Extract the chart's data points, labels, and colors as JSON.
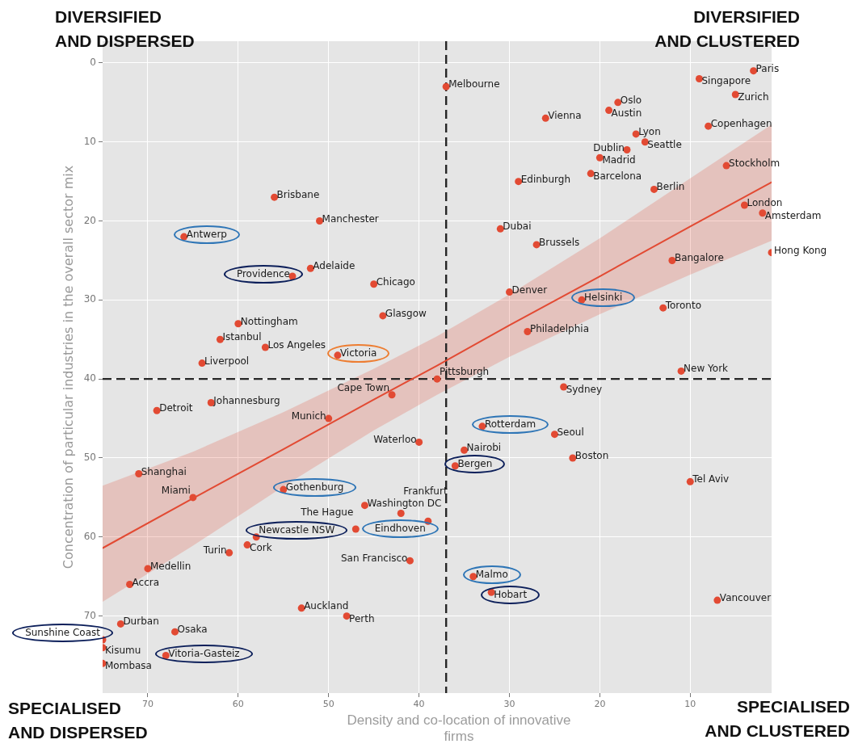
{
  "chart_data": {
    "type": "scatter",
    "xlabel": "Density and co-location of innovative firms",
    "ylabel": "Concentration of particular industries in the overall sector mix",
    "xlim": [
      75,
      1
    ],
    "xticks": [
      70,
      60,
      50,
      40,
      30,
      20,
      10
    ],
    "ylim": [
      79.75,
      -2.75
    ],
    "yticks": [
      0,
      10,
      20,
      30,
      40,
      50,
      60,
      70
    ],
    "grid": true,
    "marker": "circle",
    "series": [
      {
        "color": "#e24a33",
        "x": [
          3,
          9,
          37,
          5,
          18,
          19,
          26,
          8,
          16,
          15,
          17,
          20,
          6,
          21,
          29,
          14,
          56,
          4,
          2,
          51,
          31,
          66,
          27,
          1,
          12,
          52,
          54,
          45,
          30,
          22,
          13,
          44,
          60,
          28,
          62,
          57,
          49,
          64,
          11,
          38,
          24,
          43,
          63,
          69,
          50,
          33,
          25,
          40,
          35,
          23,
          36,
          71,
          10,
          55,
          65,
          46,
          42,
          39,
          47,
          58,
          59,
          61,
          41,
          70,
          34,
          72,
          32,
          7,
          53,
          48,
          73,
          67,
          75,
          75,
          68,
          75
        ],
        "values": [
          1,
          2,
          3,
          4,
          5,
          6,
          7,
          8,
          9,
          10,
          11,
          12,
          13,
          14,
          15,
          16,
          17,
          18,
          19,
          20,
          21,
          22,
          23,
          24,
          25,
          26,
          27,
          28,
          29,
          30,
          31,
          32,
          33,
          34,
          35,
          36,
          37,
          38,
          39,
          40,
          41,
          42,
          43,
          44,
          45,
          46,
          47,
          48,
          49,
          50,
          51,
          52,
          53,
          54,
          55,
          56,
          57,
          58,
          59,
          60,
          61,
          62,
          63,
          64,
          65,
          66,
          67,
          68,
          69,
          70,
          71,
          72,
          73,
          74,
          75,
          76
        ]
      },
      {
        "type": "line",
        "marker": "none",
        "color": "#e24a33",
        "x": [
          75,
          65,
          55,
          45,
          38,
          30,
          20,
          10,
          1
        ],
        "values": [
          61.4,
          55.1,
          48.9,
          42.6,
          38.3,
          33.2,
          27.0,
          20.7,
          15.1
        ],
        "lower": [
          53.5,
          49.2,
          44.2,
          38.7,
          34.6,
          29.3,
          22.2,
          14.6,
          7.8
        ],
        "upper": [
          68.2,
          61.1,
          53.6,
          46.5,
          42.0,
          37.2,
          31.8,
          26.8,
          22.5
        ]
      }
    ],
    "ref_lines": [
      {
        "axis": "x",
        "value": 37,
        "color": "#262626",
        "line_style": "dashed"
      },
      {
        "axis": "y",
        "value": 40,
        "color": "#262626",
        "line_style": "dashed"
      }
    ],
    "annotations": [
      {
        "text": "Paris",
        "x": 3,
        "y": 1
      },
      {
        "text": "Singapore",
        "x": 9,
        "y": 2
      },
      {
        "text": "Melbourne",
        "x": 37,
        "y": 3
      },
      {
        "text": "Zurich",
        "x": 5,
        "y": 4
      },
      {
        "text": "Oslo",
        "x": 18,
        "y": 5
      },
      {
        "text": "Austin",
        "x": 19,
        "y": 6
      },
      {
        "text": "Vienna",
        "x": 26,
        "y": 7
      },
      {
        "text": "Copenhagen",
        "x": 8,
        "y": 8
      },
      {
        "text": "Lyon",
        "x": 16,
        "y": 9
      },
      {
        "text": "Seattle",
        "x": 15,
        "y": 10
      },
      {
        "text": "Dublin",
        "x": 17,
        "y": 11
      },
      {
        "text": "Madrid",
        "x": 20,
        "y": 12
      },
      {
        "text": "Stockholm",
        "x": 6,
        "y": 13
      },
      {
        "text": "Barcelona",
        "x": 21,
        "y": 14
      },
      {
        "text": "Edinburgh",
        "x": 29,
        "y": 15
      },
      {
        "text": "Berlin",
        "x": 14,
        "y": 16
      },
      {
        "text": "Brisbane",
        "x": 56,
        "y": 17
      },
      {
        "text": "London",
        "x": 4,
        "y": 18
      },
      {
        "text": "Amsterdam",
        "x": 2,
        "y": 19
      },
      {
        "text": "Manchester",
        "x": 51,
        "y": 20
      },
      {
        "text": "Dubai",
        "x": 31,
        "y": 21
      },
      {
        "text": "Antwerp",
        "x": 66,
        "y": 22
      },
      {
        "text": "Brussels",
        "x": 27,
        "y": 23
      },
      {
        "text": "Hong Kong",
        "x": 1,
        "y": 24
      },
      {
        "text": "Bangalore",
        "x": 12,
        "y": 25
      },
      {
        "text": "Adelaide",
        "x": 52,
        "y": 26
      },
      {
        "text": "Providence",
        "x": 54,
        "y": 27
      },
      {
        "text": "Chicago",
        "x": 45,
        "y": 28
      },
      {
        "text": "Denver",
        "x": 30,
        "y": 29
      },
      {
        "text": "Helsinki",
        "x": 22,
        "y": 30
      },
      {
        "text": "Toronto",
        "x": 13,
        "y": 31
      },
      {
        "text": "Glasgow",
        "x": 44,
        "y": 32
      },
      {
        "text": "Nottingham",
        "x": 60,
        "y": 33
      },
      {
        "text": "Philadelphia",
        "x": 28,
        "y": 34
      },
      {
        "text": "Istanbul",
        "x": 62,
        "y": 35
      },
      {
        "text": "Los Angeles",
        "x": 57,
        "y": 36
      },
      {
        "text": "Victoria",
        "x": 49,
        "y": 37
      },
      {
        "text": "Liverpool",
        "x": 64,
        "y": 38
      },
      {
        "text": "New York",
        "x": 11,
        "y": 39
      },
      {
        "text": "Pittsburgh",
        "x": 38,
        "y": 40
      },
      {
        "text": "Sydney",
        "x": 24,
        "y": 41
      },
      {
        "text": "Cape Town",
        "x": 43,
        "y": 42
      },
      {
        "text": "Johannesburg",
        "x": 63,
        "y": 43
      },
      {
        "text": "Detroit",
        "x": 69,
        "y": 44
      },
      {
        "text": "Munich",
        "x": 50,
        "y": 45
      },
      {
        "text": "Rotterdam",
        "x": 33,
        "y": 46
      },
      {
        "text": "Seoul",
        "x": 25,
        "y": 47
      },
      {
        "text": "Waterloo",
        "x": 40,
        "y": 48
      },
      {
        "text": "Nairobi",
        "x": 35,
        "y": 49
      },
      {
        "text": "Boston",
        "x": 23,
        "y": 50
      },
      {
        "text": "Bergen",
        "x": 36,
        "y": 51
      },
      {
        "text": "Shanghai",
        "x": 71,
        "y": 52
      },
      {
        "text": "Tel Aviv",
        "x": 10,
        "y": 53
      },
      {
        "text": "Gothenburg",
        "x": 55,
        "y": 54
      },
      {
        "text": "Miami",
        "x": 65,
        "y": 55
      },
      {
        "text": "Washington DC",
        "x": 46,
        "y": 56
      },
      {
        "text": "Frankfurt",
        "x": 42,
        "y": 57
      },
      {
        "text": "Eindhoven",
        "x": 39,
        "y": 58
      },
      {
        "text": "The Hague",
        "x": 47,
        "y": 59
      },
      {
        "text": "Newcastle NSW",
        "x": 58,
        "y": 60
      },
      {
        "text": "Cork",
        "x": 59,
        "y": 61
      },
      {
        "text": "Turin",
        "x": 61,
        "y": 62
      },
      {
        "text": "San Francisco",
        "x": 41,
        "y": 63
      },
      {
        "text": "Medellin",
        "x": 70,
        "y": 64
      },
      {
        "text": "Malmo",
        "x": 34,
        "y": 65
      },
      {
        "text": "Accra",
        "x": 72,
        "y": 66
      },
      {
        "text": "Hobart",
        "x": 32,
        "y": 67
      },
      {
        "text": "Vancouver",
        "x": 7,
        "y": 68
      },
      {
        "text": "Auckland",
        "x": 53,
        "y": 69
      },
      {
        "text": "Perth",
        "x": 48,
        "y": 70
      },
      {
        "text": "Durban",
        "x": 73,
        "y": 71
      },
      {
        "text": "Osaka",
        "x": 67,
        "y": 72
      },
      {
        "text": "Sunshine Coast",
        "x": 75,
        "y": 73
      },
      {
        "text": "Kisumu",
        "x": 75,
        "y": 74
      },
      {
        "text": "Vitoria-Gasteiz",
        "x": 68,
        "y": 75
      },
      {
        "text": "Mombasa",
        "x": 75,
        "y": 76
      },
      "DIVERSIFIED AND DISPERSED",
      "DIVERSIFIED AND CLUSTERED",
      "SPECIALISED AND DISPERSED",
      "SPECIALISED AND CLUSTERED"
    ]
  }
}
